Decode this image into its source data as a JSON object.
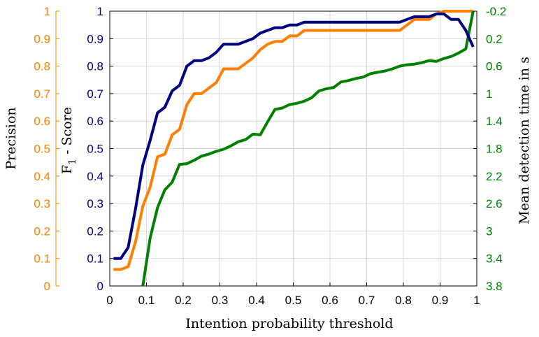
{
  "chart_data": {
    "type": "line",
    "xlabel": "Intention probability threshold",
    "ylabel_f1": "F",
    "ylabel_f1_sub": "1",
    "ylabel_f1_rest": " - Score",
    "ylabel_precision": "Precision",
    "ylabel_right": "Mean detection time in s",
    "xlim": [
      0,
      1
    ],
    "ylim_f1": [
      0,
      1
    ],
    "ylim_precision": [
      0,
      1
    ],
    "ylim_right": [
      -0.2,
      3.8
    ],
    "right_axis_reversed": true,
    "grid": true,
    "x_ticks": [
      "0",
      "0.1",
      "0.2",
      "0.3",
      "0.4",
      "0.5",
      "0.6",
      "0.7",
      "0.8",
      "0.9",
      "1"
    ],
    "f1_ticks": [
      "0",
      "0.1",
      "0.2",
      "0.3",
      "0.4",
      "0.5",
      "0.6",
      "0.7",
      "0.8",
      "0.9",
      "1"
    ],
    "precision_ticks": [
      "0",
      "0.1",
      "0.2",
      "0.3",
      "0.4",
      "0.5",
      "0.6",
      "0.7",
      "0.8",
      "0.9",
      "1"
    ],
    "right_ticks": [
      "-0.2",
      "0.2",
      "0.6",
      "1",
      "1.4",
      "1.8",
      "2.2",
      "2.6",
      "3",
      "3.4",
      "3.8"
    ],
    "colors": {
      "f1": "#000080",
      "precision": "#ff8000",
      "detection": "#008000",
      "grid": "#d9d9d9"
    },
    "series": [
      {
        "key": "f1",
        "axis": "f1",
        "x": [
          0.01,
          0.03,
          0.05,
          0.07,
          0.09,
          0.11,
          0.13,
          0.15,
          0.17,
          0.19,
          0.21,
          0.23,
          0.25,
          0.27,
          0.29,
          0.31,
          0.33,
          0.35,
          0.37,
          0.39,
          0.41,
          0.43,
          0.45,
          0.47,
          0.49,
          0.51,
          0.53,
          0.55,
          0.57,
          0.59,
          0.61,
          0.63,
          0.65,
          0.67,
          0.69,
          0.71,
          0.73,
          0.75,
          0.77,
          0.79,
          0.81,
          0.83,
          0.85,
          0.87,
          0.89,
          0.91,
          0.93,
          0.95,
          0.97,
          0.99
        ],
        "values": [
          0.1,
          0.1,
          0.14,
          0.28,
          0.44,
          0.53,
          0.63,
          0.65,
          0.71,
          0.73,
          0.8,
          0.82,
          0.82,
          0.83,
          0.85,
          0.88,
          0.88,
          0.88,
          0.89,
          0.9,
          0.92,
          0.93,
          0.94,
          0.94,
          0.95,
          0.95,
          0.96,
          0.96,
          0.96,
          0.96,
          0.96,
          0.96,
          0.96,
          0.96,
          0.96,
          0.96,
          0.96,
          0.96,
          0.96,
          0.96,
          0.97,
          0.98,
          0.98,
          0.98,
          0.99,
          0.99,
          0.97,
          0.97,
          0.93,
          0.87
        ]
      },
      {
        "key": "precision",
        "axis": "precision",
        "x": [
          0.01,
          0.03,
          0.05,
          0.07,
          0.09,
          0.11,
          0.13,
          0.15,
          0.17,
          0.19,
          0.21,
          0.23,
          0.25,
          0.27,
          0.29,
          0.31,
          0.33,
          0.35,
          0.37,
          0.39,
          0.41,
          0.43,
          0.45,
          0.47,
          0.49,
          0.51,
          0.53,
          0.55,
          0.57,
          0.59,
          0.61,
          0.63,
          0.65,
          0.67,
          0.69,
          0.71,
          0.73,
          0.75,
          0.77,
          0.79,
          0.81,
          0.83,
          0.85,
          0.87,
          0.89,
          0.91,
          0.93,
          0.95,
          0.97,
          0.99
        ],
        "values": [
          0.06,
          0.06,
          0.07,
          0.16,
          0.29,
          0.36,
          0.47,
          0.48,
          0.55,
          0.57,
          0.66,
          0.7,
          0.7,
          0.72,
          0.74,
          0.79,
          0.79,
          0.79,
          0.81,
          0.83,
          0.86,
          0.88,
          0.89,
          0.89,
          0.91,
          0.91,
          0.93,
          0.93,
          0.93,
          0.93,
          0.93,
          0.93,
          0.93,
          0.93,
          0.93,
          0.93,
          0.93,
          0.93,
          0.93,
          0.93,
          0.95,
          0.97,
          0.97,
          0.97,
          0.99,
          1.0,
          1.0,
          1.0,
          1.0,
          1.0
        ]
      },
      {
        "key": "detection",
        "axis": "right",
        "x": [
          0.09,
          0.11,
          0.13,
          0.15,
          0.17,
          0.19,
          0.21,
          0.23,
          0.25,
          0.27,
          0.29,
          0.31,
          0.33,
          0.35,
          0.37,
          0.39,
          0.41,
          0.43,
          0.45,
          0.47,
          0.49,
          0.51,
          0.53,
          0.55,
          0.57,
          0.59,
          0.61,
          0.63,
          0.65,
          0.67,
          0.69,
          0.71,
          0.73,
          0.75,
          0.77,
          0.79,
          0.81,
          0.83,
          0.85,
          0.87,
          0.89,
          0.91,
          0.93,
          0.95,
          0.97,
          0.99
        ],
        "values": [
          3.8,
          3.1,
          2.66,
          2.4,
          2.29,
          2.03,
          2.02,
          1.97,
          1.91,
          1.88,
          1.84,
          1.81,
          1.76,
          1.7,
          1.67,
          1.59,
          1.6,
          1.41,
          1.23,
          1.21,
          1.16,
          1.14,
          1.11,
          1.06,
          0.96,
          0.93,
          0.91,
          0.83,
          0.81,
          0.78,
          0.76,
          0.71,
          0.69,
          0.67,
          0.64,
          0.6,
          0.58,
          0.57,
          0.55,
          0.52,
          0.53,
          0.49,
          0.46,
          0.41,
          0.35,
          -0.2
        ]
      }
    ]
  }
}
